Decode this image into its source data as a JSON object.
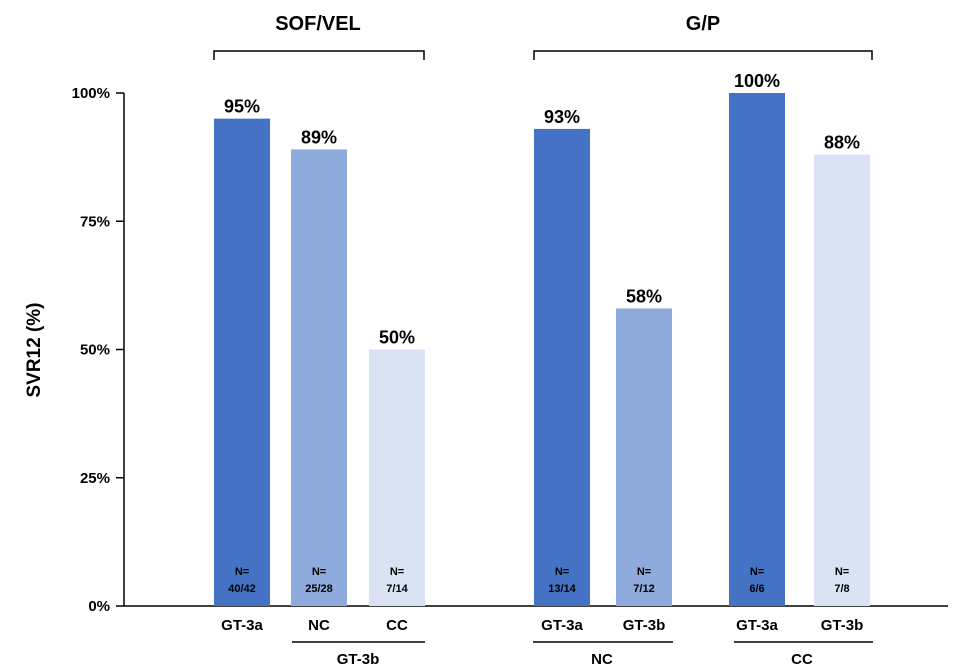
{
  "chart_data": {
    "type": "bar",
    "ylabel": "SVR12 (%)",
    "xlabel": "",
    "ylim": [
      0,
      100
    ],
    "yticks": [
      "0%",
      "25%",
      "50%",
      "75%",
      "100%"
    ],
    "ytick_values": [
      0,
      25,
      50,
      75,
      100
    ],
    "groups": [
      {
        "title": "SOF/VEL"
      },
      {
        "title": "G/P"
      }
    ],
    "bars": [
      {
        "category": "GT-3a",
        "value": 95,
        "label": "95%",
        "n_prefix": "N=",
        "n": "40/42",
        "color": "#4472C4"
      },
      {
        "category": "NC",
        "value": 89,
        "label": "89%",
        "n_prefix": "N=",
        "n": "25/28",
        "color": "#8FAADC"
      },
      {
        "category": "CC",
        "value": 50,
        "label": "50%",
        "n_prefix": "N=",
        "n": "7/14",
        "color": "#DAE3F3"
      },
      {
        "category": "GT-3a",
        "value": 93,
        "label": "93%",
        "n_prefix": "N=",
        "n": "13/14",
        "color": "#4472C4"
      },
      {
        "category": "GT-3b",
        "value": 58,
        "label": "58%",
        "n_prefix": "N=",
        "n": "7/12",
        "color": "#8FAADC"
      },
      {
        "category": "GT-3a",
        "value": 100,
        "label": "100%",
        "n_prefix": "N=",
        "n": "6/6",
        "color": "#4472C4"
      },
      {
        "category": "GT-3b",
        "value": 88,
        "label": "88%",
        "n_prefix": "N=",
        "n": "7/8",
        "color": "#DAE3F3"
      }
    ],
    "subgroups": [
      {
        "label": "GT-3b"
      },
      {
        "label": "NC"
      },
      {
        "label": "CC"
      }
    ]
  }
}
